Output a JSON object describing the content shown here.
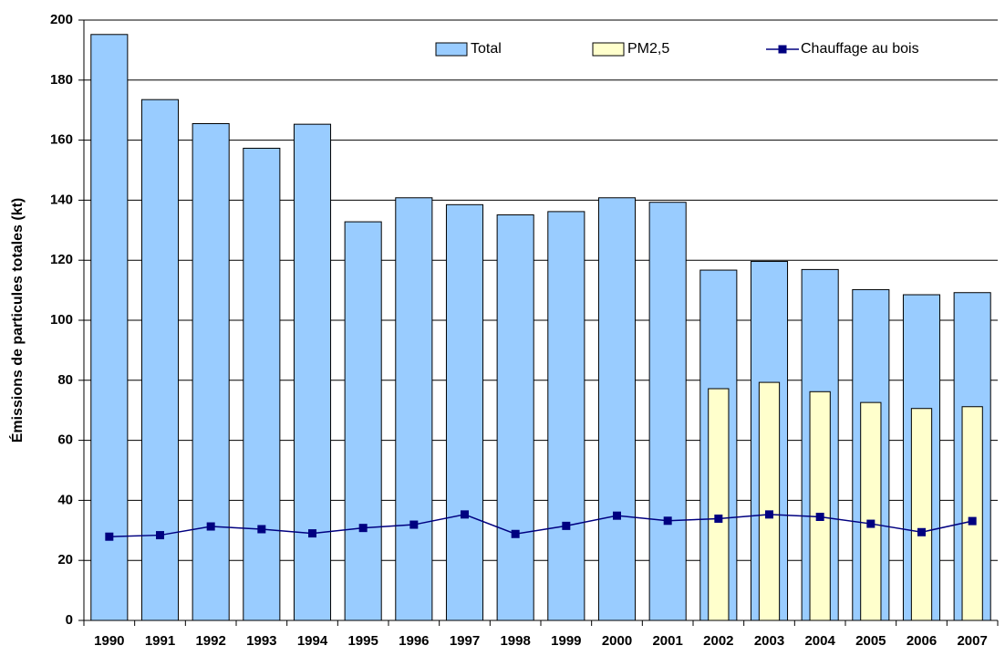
{
  "chart_data": {
    "type": "bar",
    "y_label": "Émissions de particules totales (kt)",
    "categories": [
      "1990",
      "1991",
      "1992",
      "1993",
      "1994",
      "1995",
      "1996",
      "1997",
      "1998",
      "1999",
      "2000",
      "2001",
      "2002",
      "2003",
      "2004",
      "2005",
      "2006",
      "2007"
    ],
    "series": [
      {
        "name": "Total",
        "type": "bar",
        "color": "#99ccff",
        "values": [
          195.2,
          173.5,
          165.5,
          157.3,
          165.3,
          132.8,
          140.8,
          138.5,
          135.1,
          136.2,
          140.8,
          139.3,
          116.7,
          119.6,
          116.9,
          110.2,
          108.5,
          109.2
        ]
      },
      {
        "name": "PM2,5",
        "type": "bar",
        "color": "#ffffcc",
        "values": [
          null,
          null,
          null,
          null,
          null,
          null,
          null,
          null,
          null,
          null,
          null,
          null,
          77.2,
          79.3,
          76.2,
          72.6,
          70.6,
          71.2
        ]
      },
      {
        "name": "Chauffage au bois",
        "type": "line",
        "color": "#000080",
        "values": [
          27.9,
          28.4,
          31.3,
          30.4,
          29.0,
          30.8,
          31.9,
          35.3,
          28.8,
          31.5,
          34.9,
          33.2,
          33.9,
          35.3,
          34.5,
          32.2,
          29.4,
          33.1
        ]
      }
    ],
    "ylim": [
      0,
      200
    ],
    "yticks": [
      0,
      20,
      40,
      60,
      80,
      100,
      120,
      140,
      160,
      180,
      200
    ],
    "grid": true
  }
}
